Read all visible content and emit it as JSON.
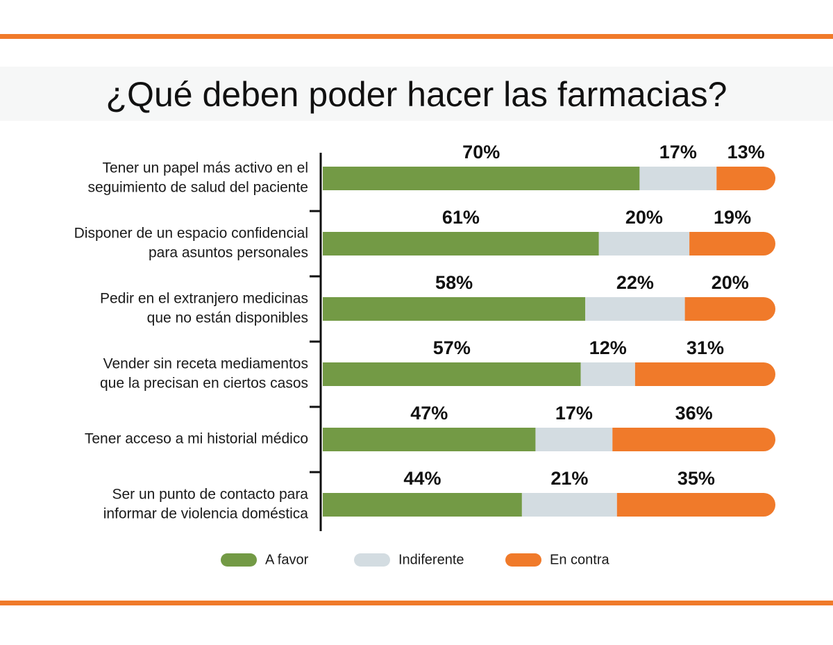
{
  "chart_data": {
    "type": "stacked-bar",
    "title": "¿Qué deben poder hacer las farmacias?",
    "categories": [
      [
        "Tener un papel más activo en el",
        "seguimiento de salud del paciente"
      ],
      [
        "Disponer de un espacio confidencial",
        "para asuntos personales"
      ],
      [
        "Pedir en el extranjero medicinas",
        "que no están disponibles"
      ],
      [
        "Vender sin receta mediamentos",
        "que la precisan en ciertos casos"
      ],
      [
        "Tener acceso a mi historial médico"
      ],
      [
        "Ser un punto de contacto para",
        "informar de violencia doméstica"
      ]
    ],
    "series": [
      {
        "name": "A favor",
        "color": "#739a45",
        "values": [
          70,
          61,
          58,
          57,
          47,
          44
        ],
        "value_labels": [
          "70%",
          "61%",
          "58%",
          "57%",
          "47%",
          "44%"
        ]
      },
      {
        "name": "Indiferente",
        "color": "#d3dce1",
        "values": [
          17,
          20,
          22,
          12,
          17,
          21
        ],
        "value_labels": [
          "17%",
          "20%",
          "22%",
          "12%",
          "17%",
          "21%"
        ]
      },
      {
        "name": "En contra",
        "color": "#f07a2a",
        "values": [
          13,
          19,
          20,
          31,
          36,
          35
        ],
        "value_labels": [
          "13%",
          "19%",
          "20%",
          "31%",
          "36%",
          "35%"
        ]
      }
    ]
  }
}
